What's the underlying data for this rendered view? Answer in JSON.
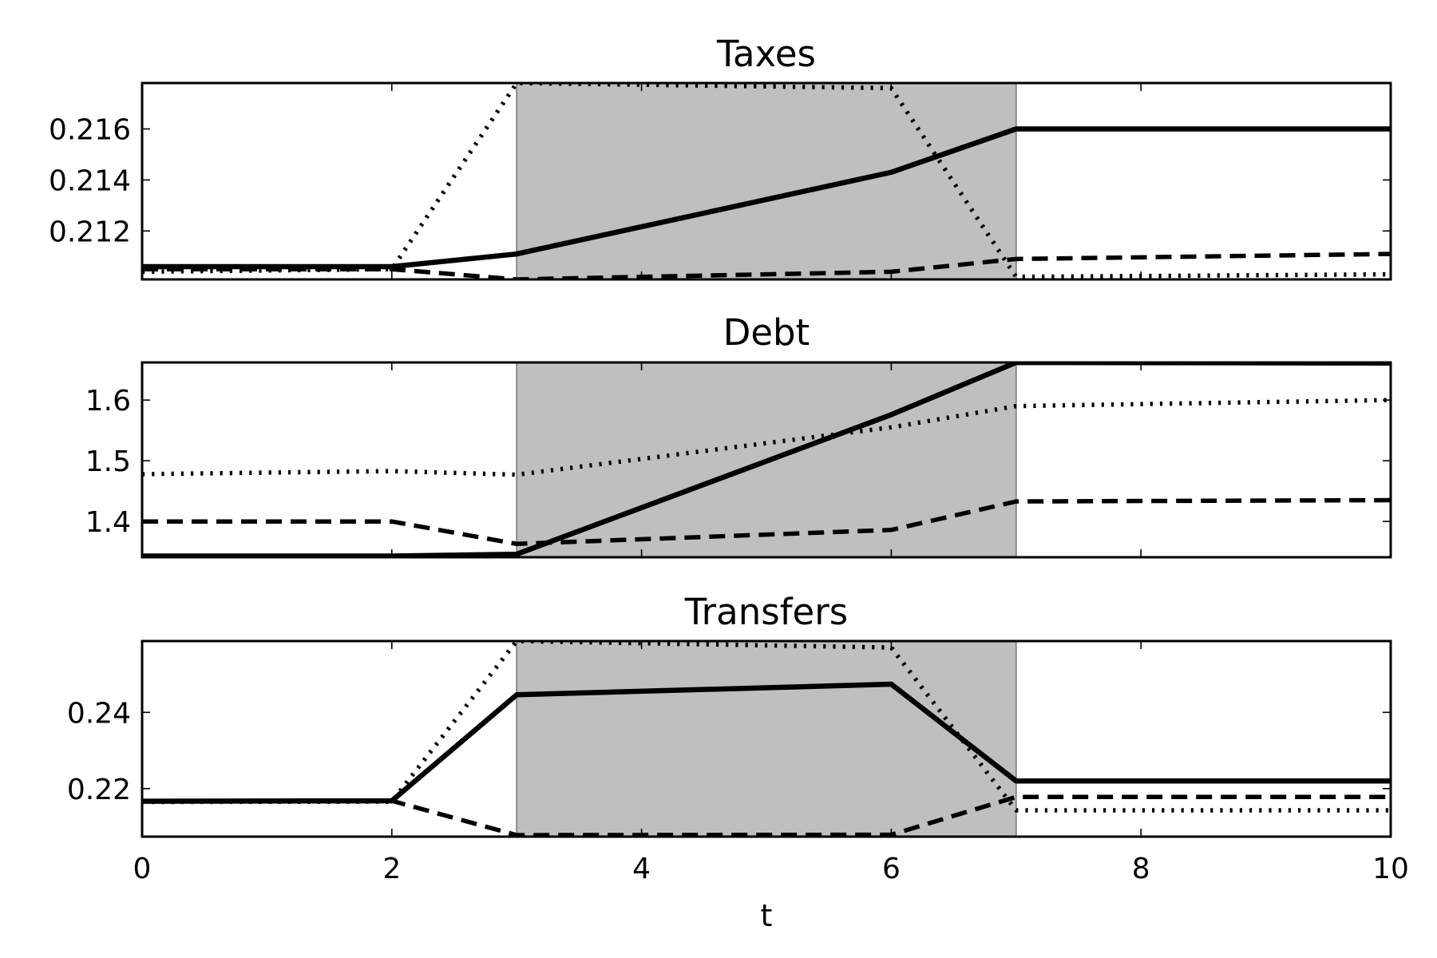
{
  "chart_data": [
    {
      "type": "line",
      "title": "Taxes",
      "xlabel": "",
      "ylabel": "",
      "xlim": [
        0,
        10
      ],
      "ylim": [
        0.2101,
        0.2178
      ],
      "xticks": [
        "0",
        "2",
        "4",
        "6",
        "8",
        "10"
      ],
      "yticks": [
        "0.212",
        "0.214",
        "0.216"
      ],
      "shaded_region": [
        3,
        7
      ],
      "x": [
        0,
        2,
        3,
        6,
        7,
        10
      ],
      "series": [
        {
          "style": "solid",
          "values": [
            0.2106,
            0.2106,
            0.2111,
            0.2143,
            0.216,
            0.216
          ]
        },
        {
          "style": "dashed",
          "values": [
            0.2105,
            0.2105,
            0.2101,
            0.2104,
            0.2109,
            0.2111
          ]
        },
        {
          "style": "dotted",
          "values": [
            0.2104,
            0.2105,
            0.2178,
            0.2176,
            0.2102,
            0.2103
          ]
        }
      ]
    },
    {
      "type": "line",
      "title": "Debt",
      "xlabel": "",
      "ylabel": "",
      "xlim": [
        0,
        10
      ],
      "ylim": [
        1.341,
        1.662
      ],
      "xticks": [
        "0",
        "2",
        "4",
        "6",
        "8",
        "10"
      ],
      "yticks": [
        "1.4",
        "1.5",
        "1.6"
      ],
      "shaded_region": [
        3,
        7
      ],
      "x": [
        0,
        2,
        3,
        6,
        7,
        10
      ],
      "series": [
        {
          "style": "solid",
          "values": [
            1.343,
            1.343,
            1.346,
            1.576,
            1.662,
            1.661
          ]
        },
        {
          "style": "dashed",
          "values": [
            1.4,
            1.4,
            1.363,
            1.386,
            1.433,
            1.435
          ]
        },
        {
          "style": "dotted",
          "values": [
            1.478,
            1.483,
            1.477,
            1.555,
            1.59,
            1.6
          ]
        }
      ]
    },
    {
      "type": "line",
      "title": "Transfers",
      "xlabel": "t",
      "ylabel": "",
      "xlim": [
        0,
        10
      ],
      "ylim": [
        0.2074,
        0.2587
      ],
      "xticks": [
        "0",
        "2",
        "4",
        "6",
        "8",
        "10"
      ],
      "yticks": [
        "0.22",
        "0.24"
      ],
      "shaded_region": [
        3,
        7
      ],
      "x": [
        0,
        2,
        3,
        6,
        7,
        10
      ],
      "series": [
        {
          "style": "solid",
          "values": [
            0.2167,
            0.2168,
            0.2446,
            0.2474,
            0.222,
            0.222
          ]
        },
        {
          "style": "dashed",
          "values": [
            0.2167,
            0.2168,
            0.2078,
            0.2079,
            0.2178,
            0.2178
          ]
        },
        {
          "style": "dotted",
          "values": [
            0.2165,
            0.2166,
            0.2587,
            0.257,
            0.2143,
            0.2143
          ]
        }
      ]
    }
  ]
}
